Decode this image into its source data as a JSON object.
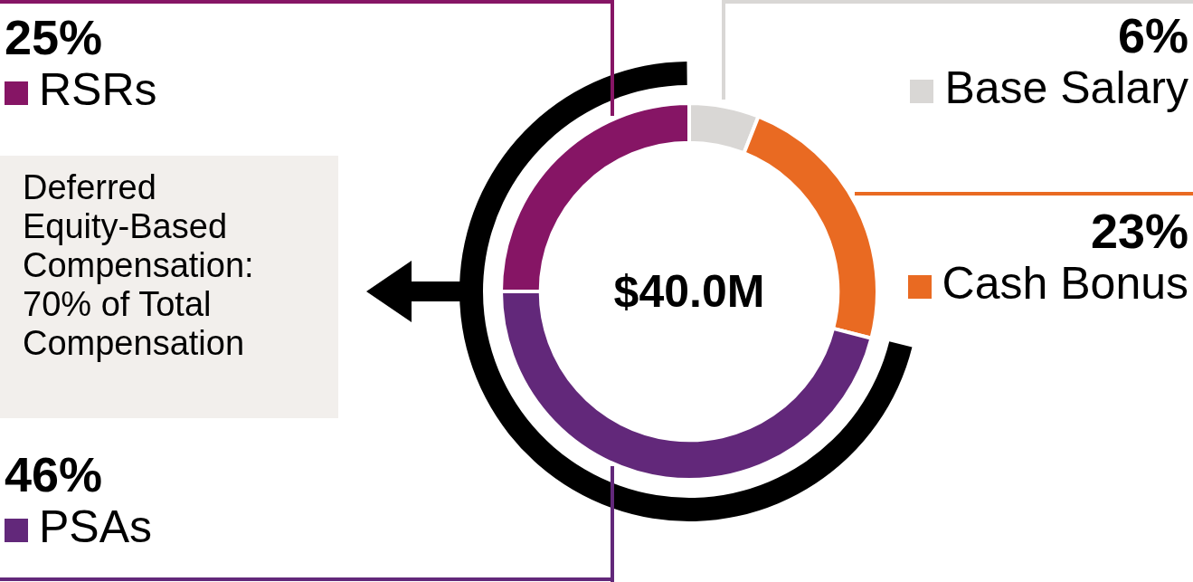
{
  "chart_data": {
    "type": "donut",
    "categories": [
      "Base Salary",
      "Cash Bonus",
      "PSAs",
      "RSRs"
    ],
    "values": [
      6,
      23,
      46,
      25
    ],
    "value_labels": [
      "6%",
      "23%",
      "46%",
      "25%"
    ],
    "colors": [
      "#d9d7d5",
      "#e96a22",
      "#62287a",
      "#861565"
    ],
    "annotations": [
      "$40.0M",
      "Deferred Equity-Based Compensation: 70% of Total Compensation"
    ],
    "legend": "left"
  }
}
